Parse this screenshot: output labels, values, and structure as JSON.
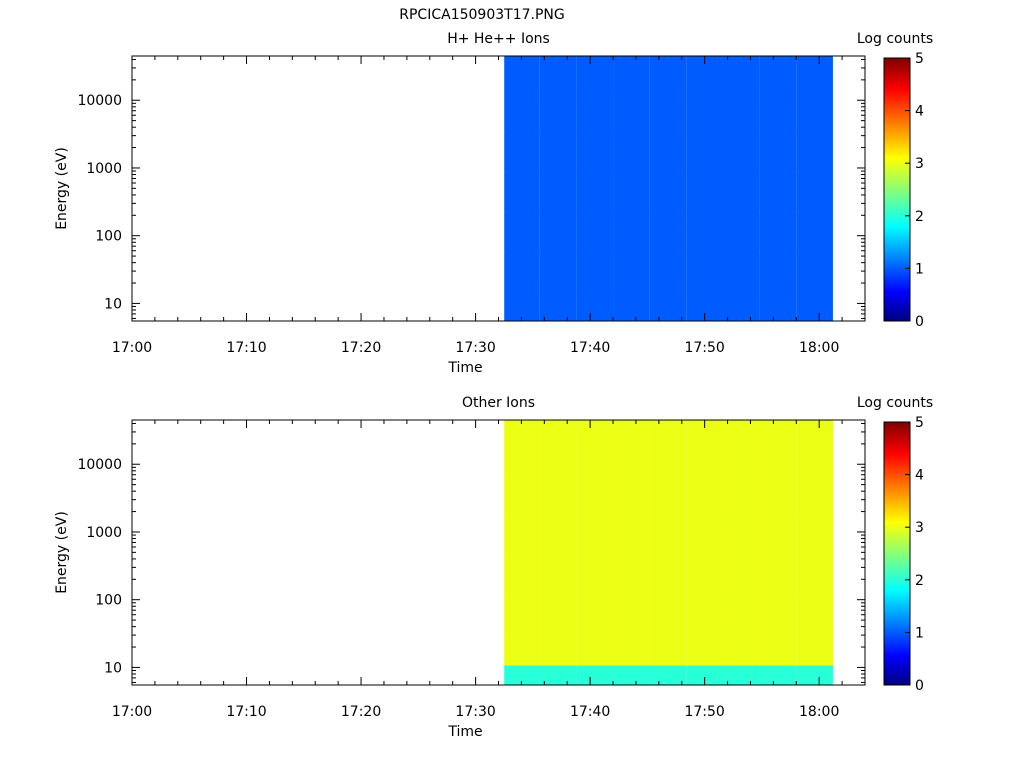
{
  "page_title": "RPCICA150903T17.PNG",
  "chart_data": [
    {
      "type": "heatmap",
      "title": "H+ He++ Ions",
      "xlabel": "Time",
      "ylabel": "Energy (eV)",
      "x_tick_labels": [
        "17:00",
        "17:10",
        "17:20",
        "17:30",
        "17:40",
        "17:50",
        "18:00"
      ],
      "x_range_minutes": [
        0,
        64
      ],
      "y_scale": "log",
      "y_range": [
        5.5,
        45000
      ],
      "y_tick_labels": [
        "10",
        "100",
        "1000",
        "10000"
      ],
      "colorbar": {
        "label": "Log counts",
        "range": [
          0,
          5
        ],
        "tick_labels": [
          "0",
          "1",
          "2",
          "3",
          "4",
          "5"
        ]
      },
      "time_columns_minutes": [
        [
          32.5,
          35.6
        ],
        [
          35.6,
          38.8
        ],
        [
          38.8,
          42.0
        ],
        [
          42.0,
          45.2
        ],
        [
          45.2,
          48.4
        ],
        [
          48.4,
          51.6
        ],
        [
          51.6,
          54.8
        ],
        [
          54.8,
          58.0
        ],
        [
          58.0,
          61.2
        ]
      ],
      "energy_bins": 40,
      "energy_bin_range_eV": [
        5.5,
        45000
      ],
      "columns": [
        "1111111111111111111111111111111111111111",
        "1111111111111111111111111111111111111111",
        "1111111111111111111111111111111111111111",
        "1111111111111111111111111111111111111111",
        "1111111111111111111111111111111111111111",
        "1111111111111111111111111111111111111111",
        "1111111111111111111111111111111111111111",
        "1111111111111111111111111111111111111111",
        "1111111111111111111111111111111111111111"
      ]
    },
    {
      "type": "heatmap",
      "title": "Other Ions",
      "xlabel": "Time",
      "ylabel": "Energy (eV)",
      "x_tick_labels": [
        "17:00",
        "17:10",
        "17:20",
        "17:30",
        "17:40",
        "17:50",
        "18:00"
      ],
      "x_range_minutes": [
        0,
        64
      ],
      "y_scale": "log",
      "y_range": [
        5.5,
        45000
      ],
      "y_tick_labels": [
        "10",
        "100",
        "1000",
        "10000"
      ],
      "colorbar": {
        "label": "Log counts",
        "range": [
          0,
          5
        ],
        "tick_labels": [
          "0",
          "1",
          "2",
          "3",
          "4",
          "5"
        ]
      },
      "time_columns_minutes": [
        [
          32.5,
          35.6
        ],
        [
          35.6,
          38.8
        ],
        [
          38.8,
          42.0
        ],
        [
          42.0,
          45.2
        ],
        [
          45.2,
          48.4
        ],
        [
          48.4,
          51.6
        ],
        [
          51.6,
          54.8
        ],
        [
          54.8,
          58.0
        ],
        [
          58.0,
          61.2
        ]
      ],
      "energy_bins": 40,
      "energy_bin_range_eV": [
        5.5,
        45000
      ],
      "columns": [
        "2223333333333333333333333333333333333333",
        "2223333333333333333333333333333333333333",
        "2223333333333333333333333333333333333333",
        "2223333333333333333333333333333333333333",
        "2223333333333333333333333333333333333333",
        "2223333333333333333333333333333333333333",
        "2223333333333333333333333333333333333333",
        "2223333333333333333333333333333333333333",
        "2223333333333333333333333333333333333333"
      ]
    }
  ]
}
